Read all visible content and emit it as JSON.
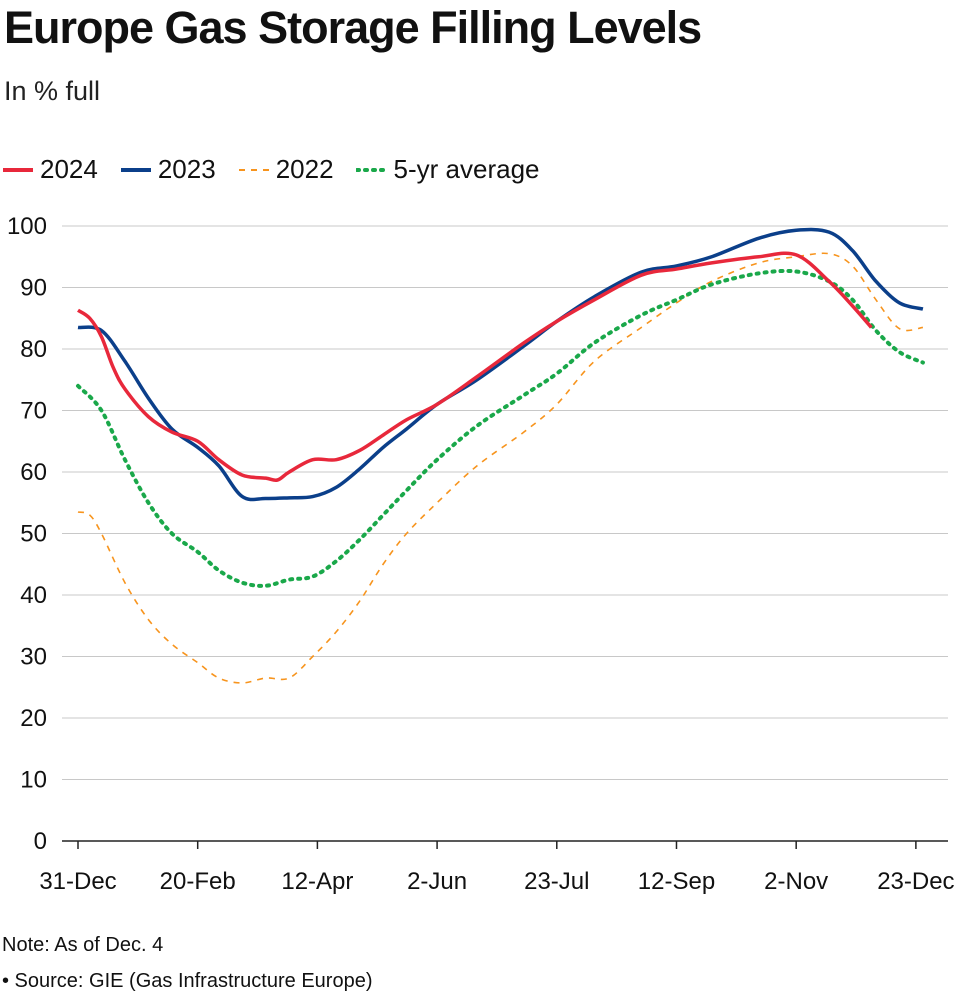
{
  "title": "Europe Gas Storage Filling Levels",
  "subtitle": "In % full",
  "note": "Note: As of Dec. 4",
  "source": "• Source: GIE (Gas Infrastructure Europe)",
  "chart_data": {
    "type": "line",
    "title": "Europe Gas Storage Filling Levels",
    "subtitle": "In % full",
    "ylim": [
      0,
      100
    ],
    "yticks": [
      "0",
      "10",
      "20",
      "30",
      "40",
      "50",
      "60",
      "70",
      "80",
      "90",
      "100"
    ],
    "xticks": [
      "31-Dec",
      "20-Feb",
      "12-Apr",
      "2-Jun",
      "23-Jul",
      "12-Sep",
      "2-Nov",
      "23-Dec"
    ],
    "grid": "horizontal",
    "legend_placement": "top-left",
    "series": [
      {
        "name": "2024",
        "color": "#e8283b",
        "style": "solid",
        "points": [
          [
            "Dec 31",
            86.3
          ],
          [
            "Jan 5",
            85
          ],
          [
            "Jan 10",
            82
          ],
          [
            "Jan 15",
            77
          ],
          [
            "Jan 20",
            73.5
          ],
          [
            "Jan 30",
            69
          ],
          [
            "Feb 9",
            66.5
          ],
          [
            "Feb 20",
            65
          ],
          [
            "Mar 1",
            62
          ],
          [
            "Mar 11",
            59.5
          ],
          [
            "Mar 21",
            59
          ],
          [
            "Mar 26",
            58.7
          ],
          [
            "Mar 31",
            60
          ],
          [
            "Apr 10",
            62
          ],
          [
            "Apr 20",
            62
          ],
          [
            "Apr 30",
            63.5
          ],
          [
            "May 10",
            66
          ],
          [
            "May 20",
            68.5
          ],
          [
            "Jun 2",
            71
          ],
          [
            "Jun 19",
            75.5
          ],
          [
            "Jul 9",
            81
          ],
          [
            "Jul 23",
            84.5
          ],
          [
            "Aug 8",
            88
          ],
          [
            "Aug 28",
            92
          ],
          [
            "Sep 12",
            93
          ],
          [
            "Sep 27",
            94
          ],
          [
            "Oct 17",
            95
          ],
          [
            "Nov 2",
            95.3
          ],
          [
            "Nov 16",
            91
          ],
          [
            "Nov 26",
            87
          ],
          [
            "Dec 4",
            83.5
          ]
        ]
      },
      {
        "name": "2023",
        "color": "#0b3f8a",
        "style": "solid",
        "points": [
          [
            "Dec 31",
            83.5
          ],
          [
            "Jan 10",
            83
          ],
          [
            "Jan 20",
            78
          ],
          [
            "Jan 30",
            72
          ],
          [
            "Feb 9",
            67
          ],
          [
            "Feb 20",
            64
          ],
          [
            "Mar 1",
            61
          ],
          [
            "Mar 11",
            56
          ],
          [
            "Mar 21",
            55.7
          ],
          [
            "Mar 31",
            55.8
          ],
          [
            "Apr 10",
            56
          ],
          [
            "Apr 20",
            57.5
          ],
          [
            "Apr 30",
            60.5
          ],
          [
            "May 10",
            64
          ],
          [
            "May 20",
            67
          ],
          [
            "Jun 2",
            71
          ],
          [
            "Jun 19",
            75
          ],
          [
            "Jul 9",
            80.5
          ],
          [
            "Jul 23",
            84.5
          ],
          [
            "Aug 8",
            88.5
          ],
          [
            "Aug 28",
            92.5
          ],
          [
            "Sep 12",
            93.5
          ],
          [
            "Sep 27",
            95
          ],
          [
            "Oct 17",
            98
          ],
          [
            "Nov 2",
            99.3
          ],
          [
            "Nov 16",
            99
          ],
          [
            "Nov 26",
            96
          ],
          [
            "Dec 6",
            91
          ],
          [
            "Dec 16",
            87.5
          ],
          [
            "Dec 26",
            86.5
          ]
        ]
      },
      {
        "name": "2022",
        "color": "#f7941d",
        "style": "dashed",
        "points": [
          [
            "Dec 31",
            53.5
          ],
          [
            "Jan 5",
            53
          ],
          [
            "Jan 10",
            50
          ],
          [
            "Jan 20",
            42
          ],
          [
            "Jan 30",
            36
          ],
          [
            "Feb 9",
            32
          ],
          [
            "Feb 20",
            29
          ],
          [
            "Mar 1",
            26.5
          ],
          [
            "Mar 11",
            25.7
          ],
          [
            "Mar 21",
            26.5
          ],
          [
            "Mar 31",
            26.5
          ],
          [
            "Apr 10",
            30
          ],
          [
            "Apr 20",
            34
          ],
          [
            "Apr 30",
            39
          ],
          [
            "May 10",
            45
          ],
          [
            "May 20",
            50
          ],
          [
            "Jun 2",
            55
          ],
          [
            "Jun 19",
            61
          ],
          [
            "Jul 9",
            66.5
          ],
          [
            "Jul 23",
            71
          ],
          [
            "Aug 8",
            78
          ],
          [
            "Aug 28",
            83.5
          ],
          [
            "Sep 12",
            87.5
          ],
          [
            "Sep 27",
            91
          ],
          [
            "Oct 17",
            94
          ],
          [
            "Nov 2",
            95
          ],
          [
            "Nov 16",
            95.5
          ],
          [
            "Nov 26",
            93.5
          ],
          [
            "Dec 6",
            88
          ],
          [
            "Dec 16",
            83.3
          ],
          [
            "Dec 26",
            83.5
          ]
        ]
      },
      {
        "name": "5-yr average",
        "color": "#1aa84a",
        "style": "dotted",
        "points": [
          [
            "Dec 31",
            74
          ],
          [
            "Jan 10",
            70
          ],
          [
            "Jan 20",
            62
          ],
          [
            "Jan 30",
            55
          ],
          [
            "Feb 9",
            50
          ],
          [
            "Feb 20",
            47
          ],
          [
            "Mar 1",
            44
          ],
          [
            "Mar 11",
            42
          ],
          [
            "Mar 21",
            41.5
          ],
          [
            "Mar 31",
            42.5
          ],
          [
            "Apr 10",
            43
          ],
          [
            "Apr 20",
            45.5
          ],
          [
            "Apr 30",
            49
          ],
          [
            "May 10",
            53
          ],
          [
            "May 20",
            57
          ],
          [
            "Jun 2",
            62
          ],
          [
            "Jun 19",
            67.5
          ],
          [
            "Jul 9",
            72.5
          ],
          [
            "Jul 23",
            76
          ],
          [
            "Aug 8",
            81
          ],
          [
            "Aug 28",
            85.5
          ],
          [
            "Sep 12",
            88
          ],
          [
            "Sep 27",
            90.5
          ],
          [
            "Oct 17",
            92.3
          ],
          [
            "Nov 2",
            92.6
          ],
          [
            "Nov 16",
            91
          ],
          [
            "Nov 26",
            88
          ],
          [
            "Dec 6",
            83
          ],
          [
            "Dec 16",
            79.5
          ],
          [
            "Dec 26",
            77.8
          ]
        ]
      }
    ]
  }
}
